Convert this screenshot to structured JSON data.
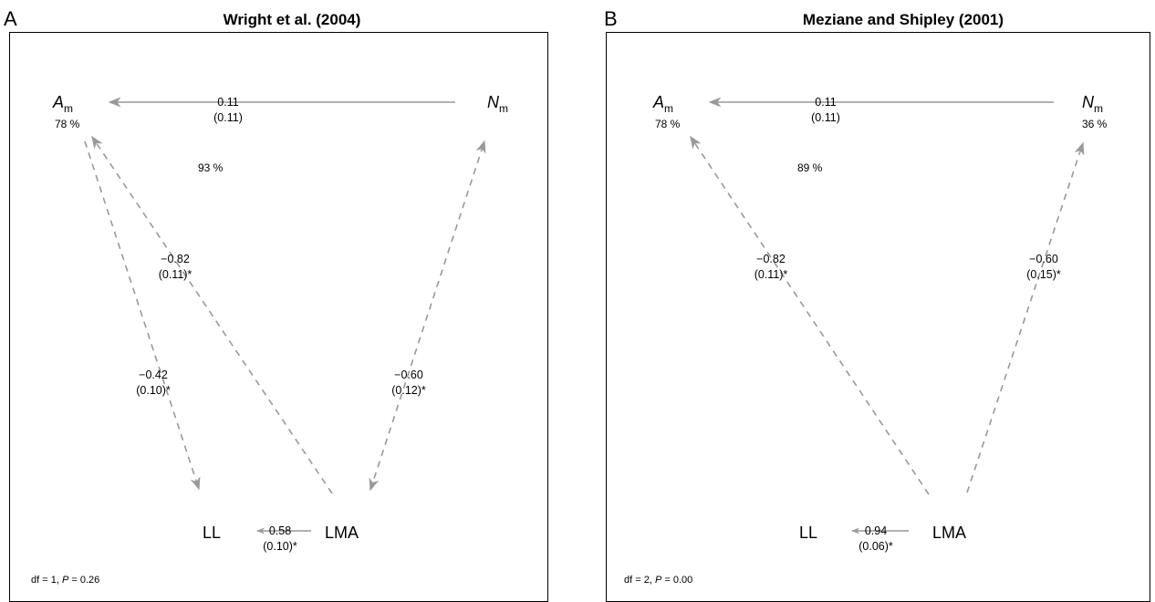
{
  "panels": [
    {
      "letter": "A",
      "title": "Wright et al. (2004)",
      "nodes": {
        "am": {
          "symbol": "A",
          "subscript": "m",
          "r2": "78 %"
        },
        "nm": {
          "symbol": "N",
          "subscript": "m",
          "r2": ""
        },
        "ll": {
          "label": "LL"
        },
        "lma": {
          "label": "LMA"
        }
      },
      "center_r2": "93 %",
      "paths": {
        "nm_am": {
          "coef": "0.11",
          "se": "(0.11)"
        },
        "lma_am": {
          "coef": "−0.82",
          "se": "(0.11)*"
        },
        "am_ll": {
          "coef": "−0.42",
          "se": "(0.10)*"
        },
        "lma_nm": {
          "coef": "−0.60",
          "se": "(0.12)*"
        },
        "lma_ll": {
          "coef": "0.58",
          "se": "(0.10)*"
        }
      },
      "fit": {
        "df": "df = 1, ",
        "p_symbol": "P",
        "p_value": " = 0.26"
      }
    },
    {
      "letter": "B",
      "title": "Meziane and Shipley (2001)",
      "nodes": {
        "am": {
          "symbol": "A",
          "subscript": "m",
          "r2": "78 %"
        },
        "nm": {
          "symbol": "N",
          "subscript": "m",
          "r2": "36 %"
        },
        "ll": {
          "label": "LL"
        },
        "lma": {
          "label": "LMA"
        }
      },
      "center_r2": "89 %",
      "paths": {
        "nm_am": {
          "coef": "0.11",
          "se": "(0.11)"
        },
        "lma_am": {
          "coef": "−0.82",
          "se": "(0.11)*"
        },
        "lma_nm": {
          "coef": "−0.60",
          "se": "(0,15)*"
        },
        "lma_ll": {
          "coef": "0.94",
          "se": "(0.06)*"
        }
      },
      "fit": {
        "df": "df = 2, ",
        "p_symbol": "P",
        "p_value": " = 0.00"
      }
    }
  ],
  "colors": {
    "arrow": "#999999",
    "border": "#000000",
    "text": "#000000"
  }
}
